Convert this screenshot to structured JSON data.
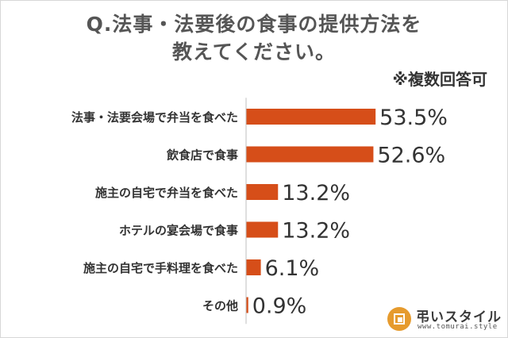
{
  "title_line1": "Q.法事・法要後の食事の提供方法を",
  "title_line2": "教えてください。",
  "note": "※複数回答可",
  "brand": {
    "name": "弔いスタイル",
    "url": "www.tomurai.style",
    "logo_color": "#e69b2e"
  },
  "chart_data": {
    "type": "bar",
    "orientation": "horizontal",
    "unit": "%",
    "color": "#d64e19",
    "categories": [
      "法事・法要会場で弁当を食べた",
      "飲食店で食事",
      "施主の自宅で弁当を食べた",
      "ホテルの宴会場で食事",
      "施主の自宅で手料理を食べた",
      "その他"
    ],
    "values": [
      53.5,
      52.6,
      13.2,
      13.2,
      6.1,
      0.9
    ],
    "value_labels": [
      "53.5%",
      "52.6%",
      "13.2%",
      "13.2%",
      "6.1%",
      "0.9%"
    ],
    "xlim": [
      0,
      100
    ],
    "grid": false
  }
}
